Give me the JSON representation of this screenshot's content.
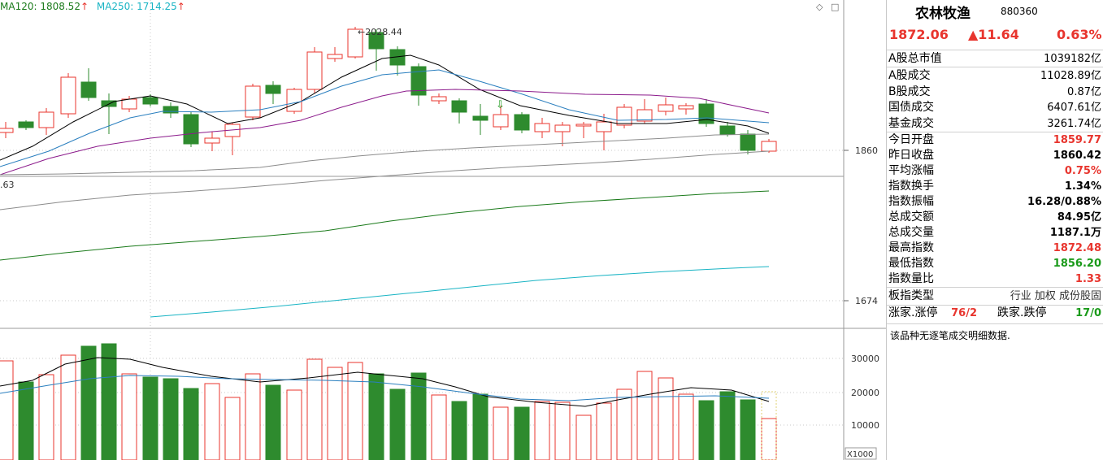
{
  "legend": {
    "ma120": {
      "label": "MA120: 1808.52",
      "arrow": "↑",
      "color": "#1a7a1a"
    },
    "ma250": {
      "label": "MA250: 1714.25",
      "arrow": "↑",
      "color": "#19b4c4"
    }
  },
  "chart": {
    "high_label": "2028.44",
    "left_label": ".63",
    "price_axis": [
      "1860",
      "1674"
    ],
    "volume_axis": [
      "30000",
      "20000",
      "10000"
    ],
    "volume_unit": "X1000",
    "colors": {
      "up": "#e8352e",
      "down": "#2e8b2e",
      "ma5": "#000000",
      "ma10": "#2a7fbf",
      "ma20": "#8b1a8b",
      "ma60": "#8c8c8c",
      "ma120": "#1a7a1a",
      "ma250": "#19b4c4"
    }
  },
  "panel": {
    "title": "农林牧渔",
    "code": "880360",
    "price": "1872.06",
    "change": "▲11.64",
    "change_pct": "0.63%",
    "market_cap": {
      "label": "A股总市值",
      "value": "1039182亿"
    },
    "turnover": [
      {
        "label": "A股成交",
        "value": "11028.89亿"
      },
      {
        "label": "B股成交",
        "value": "0.87亿"
      },
      {
        "label": "国债成交",
        "value": "6407.61亿"
      },
      {
        "label": "基金成交",
        "value": "3261.74亿"
      }
    ],
    "stats": [
      {
        "label": "今日开盘",
        "value": "1859.77",
        "tone": "red"
      },
      {
        "label": "昨日收盘",
        "value": "1860.42",
        "tone": ""
      },
      {
        "label": "平均涨幅",
        "value": "0.75%",
        "tone": "red"
      },
      {
        "label": "指数换手",
        "value": "1.34%",
        "tone": ""
      },
      {
        "label": "指数振幅",
        "value": "16.28/0.88%",
        "tone": ""
      },
      {
        "label": "总成交额",
        "value": "84.95亿",
        "tone": ""
      },
      {
        "label": "总成交量",
        "value": "1187.1万",
        "tone": ""
      },
      {
        "label": "最高指数",
        "value": "1872.48",
        "tone": "red"
      },
      {
        "label": "最低指数",
        "value": "1856.20",
        "tone": "green"
      },
      {
        "label": "指数量比",
        "value": "1.33",
        "tone": "red"
      }
    ],
    "index_type": {
      "label": "板指类型",
      "value": "行业 加权 成份股固"
    },
    "breadth": {
      "up_label": "涨家.涨停",
      "up_value": "76/2",
      "down_label": "跌家.跌停",
      "down_value": "17/0"
    },
    "note": "该品种无逐笔成交明细数据."
  }
}
